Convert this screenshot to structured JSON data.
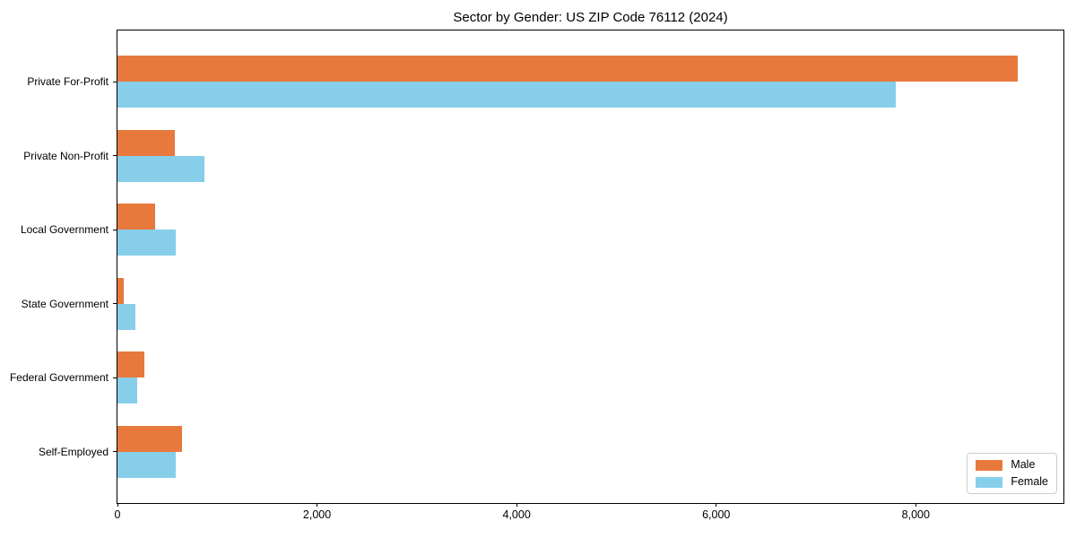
{
  "title": "Sector by Gender: US ZIP Code 76112 (2024)",
  "colors": {
    "male": "#e8793c",
    "female": "#87ceeb",
    "axis": "#000000",
    "legend_border": "#cccccc",
    "background": "#ffffff"
  },
  "chart_data": {
    "type": "bar",
    "orientation": "horizontal",
    "title": "Sector by Gender: US ZIP Code 76112 (2024)",
    "xlabel": "",
    "ylabel": "",
    "categories": [
      "Private For-Profit",
      "Private Non-Profit",
      "Local Government",
      "State Government",
      "Federal Government",
      "Self-Employed"
    ],
    "series": [
      {
        "name": "Male",
        "color": "#e8793c",
        "values": [
          9020,
          575,
          380,
          60,
          270,
          650
        ]
      },
      {
        "name": "Female",
        "color": "#87ceeb",
        "values": [
          7800,
          875,
          585,
          180,
          200,
          585
        ]
      }
    ],
    "xlim": [
      0,
      9480
    ],
    "xticks": [
      0,
      2000,
      4000,
      6000,
      8000
    ],
    "xtick_labels": [
      "0",
      "2,000",
      "4,000",
      "6,000",
      "8,000"
    ],
    "grid": false,
    "legend_position": "lower right"
  },
  "legend": {
    "items": [
      {
        "label": "Male"
      },
      {
        "label": "Female"
      }
    ]
  }
}
